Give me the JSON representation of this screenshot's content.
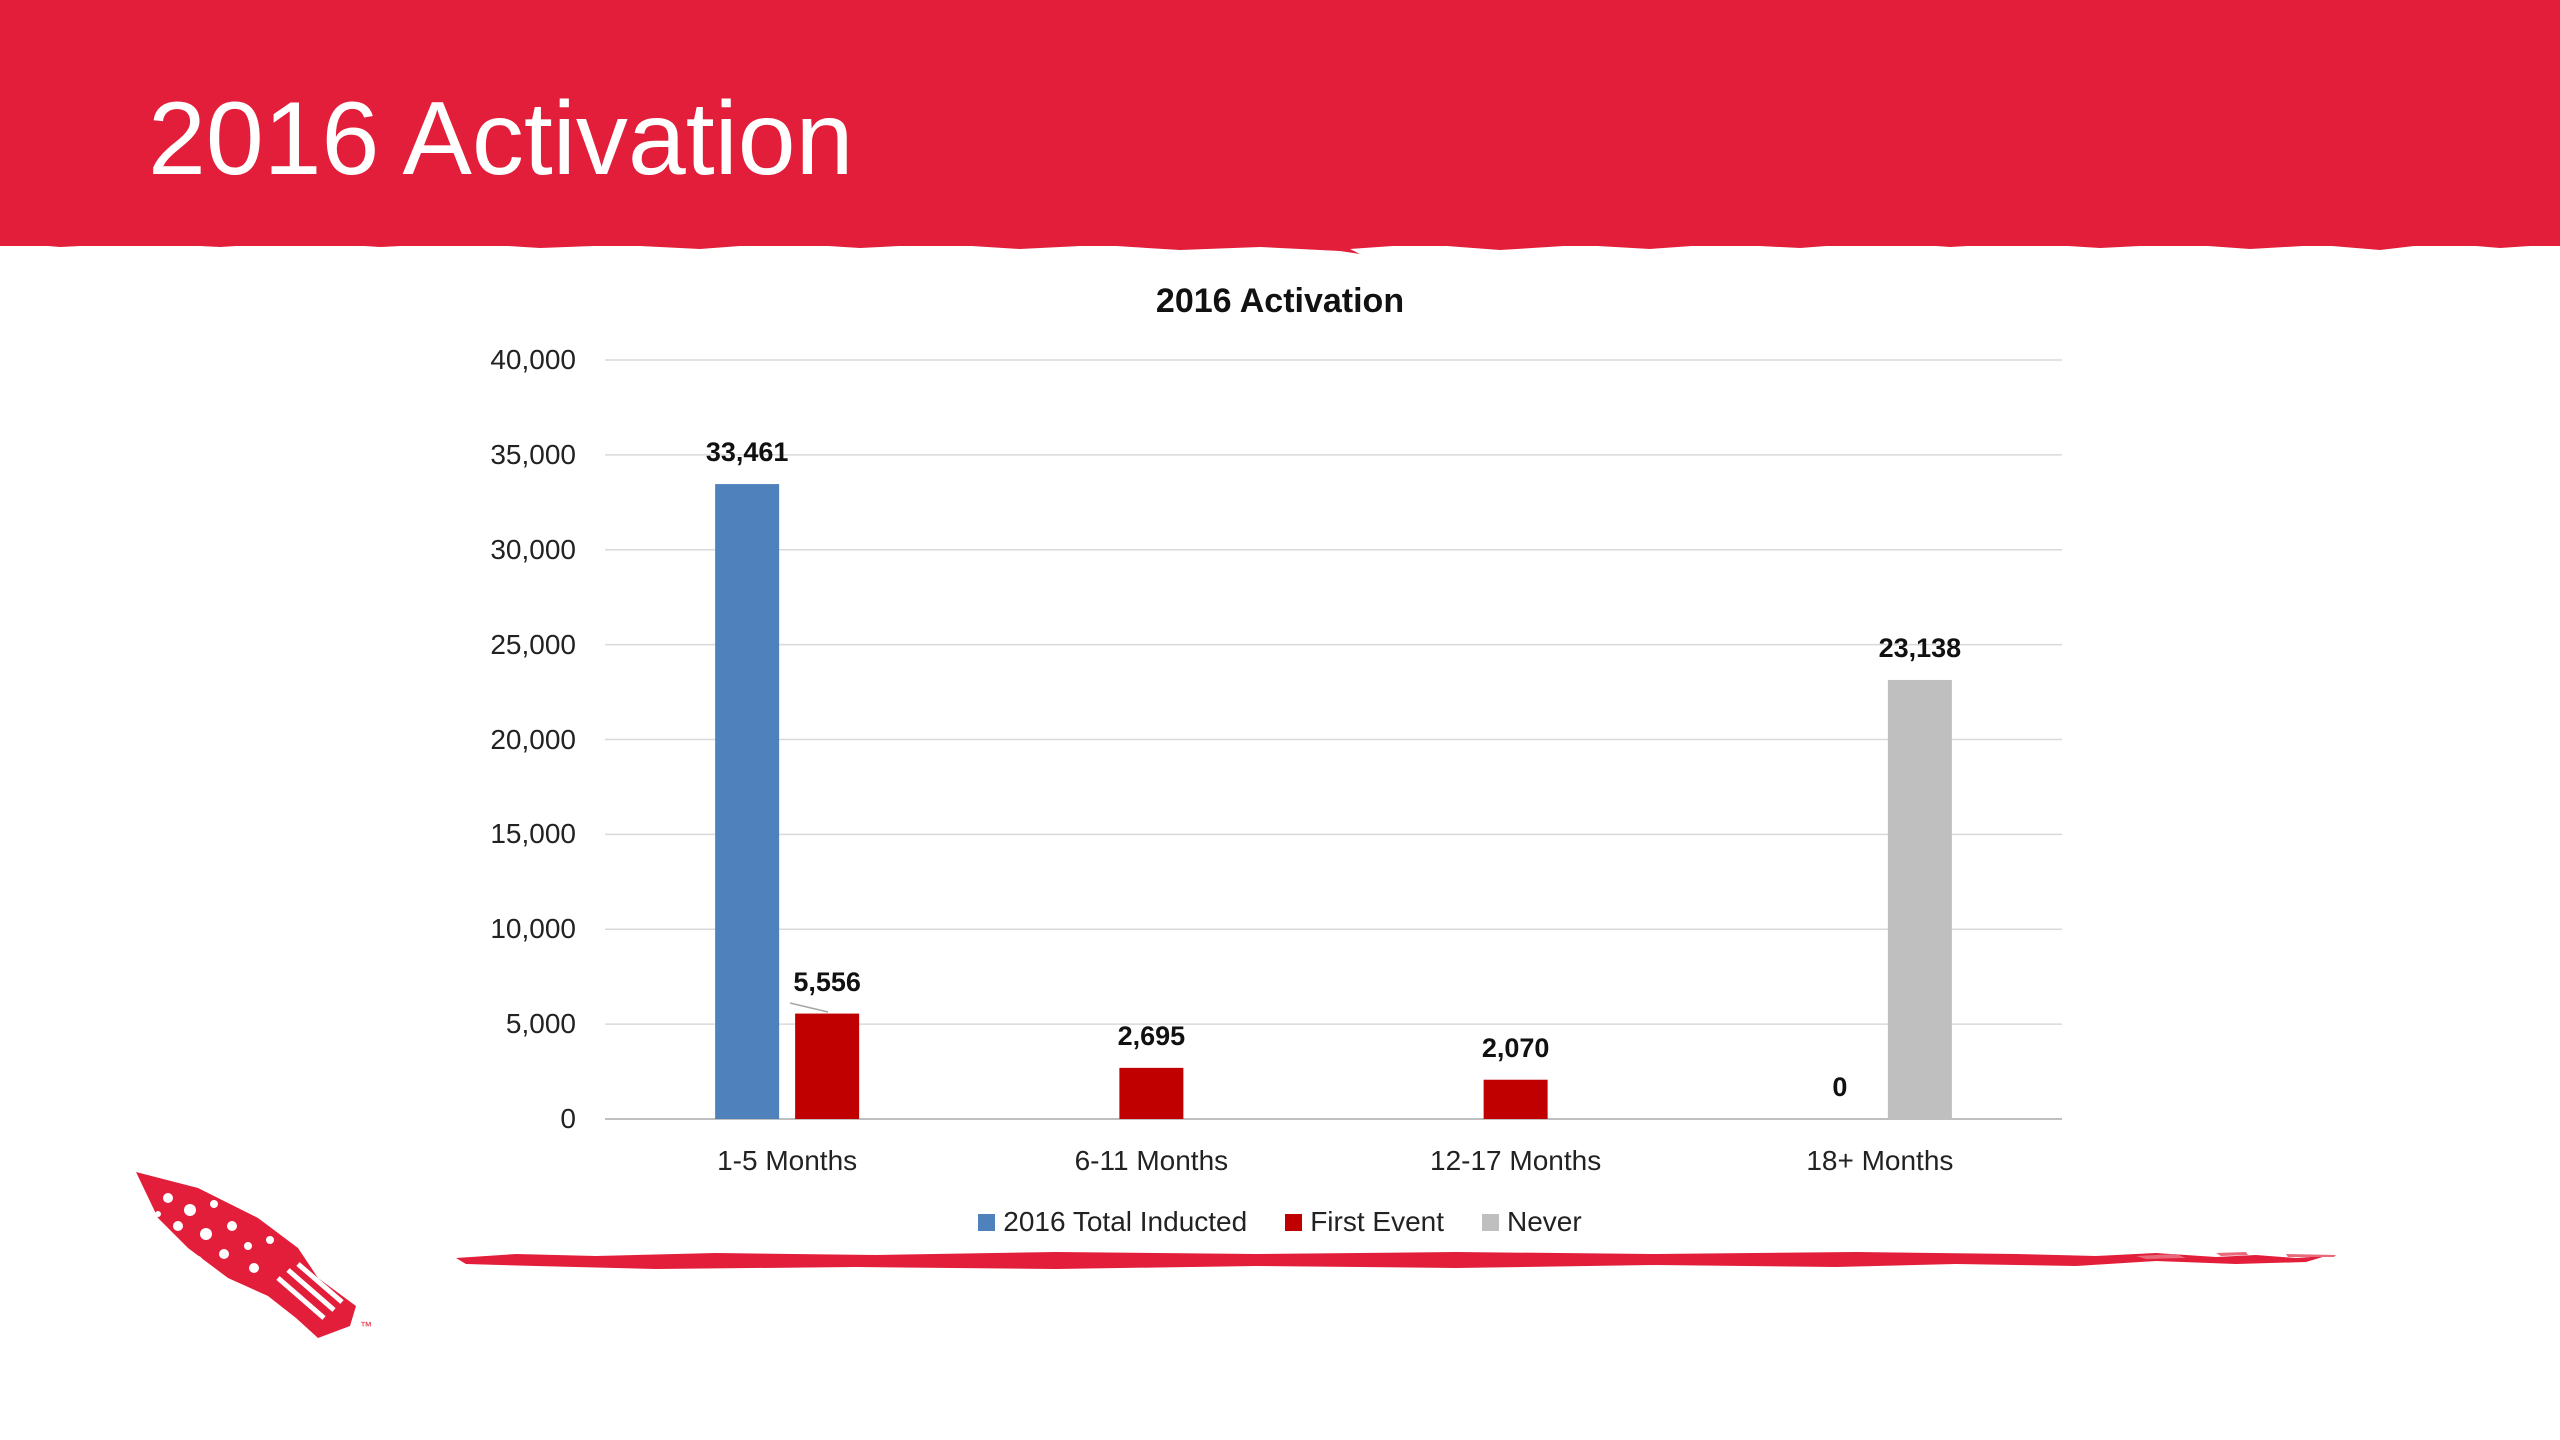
{
  "slide": {
    "title": "2016 Activation",
    "header_color": "#e21e3a",
    "logo_icon": "arrowhead-logo-icon",
    "logo_mark": "™"
  },
  "chart_data": {
    "type": "bar",
    "title": "2016 Activation",
    "xlabel": "",
    "ylabel": "",
    "categories": [
      "1-5 Months",
      "6-11 Months",
      "12-17 Months",
      "18+ Months"
    ],
    "ylim": [
      0,
      40000
    ],
    "yticks": [
      0,
      5000,
      10000,
      15000,
      20000,
      25000,
      30000,
      35000,
      40000
    ],
    "ytick_labels": [
      "0",
      "5,000",
      "10,000",
      "15,000",
      "20,000",
      "25,000",
      "30,000",
      "35,000",
      "40,000"
    ],
    "grid": true,
    "legend_position": "bottom",
    "series": [
      {
        "name": "2016 Total Inducted",
        "color": "#4f81bd",
        "values": [
          33461,
          null,
          null,
          null
        ],
        "labels": [
          "33,461",
          "",
          "",
          ""
        ]
      },
      {
        "name": "First Event",
        "color": "#c00000",
        "values": [
          5556,
          2695,
          2070,
          0
        ],
        "labels": [
          "5,556",
          "2,695",
          "2,070",
          "0"
        ]
      },
      {
        "name": "Never",
        "color": "#bfbfbf",
        "values": [
          null,
          null,
          null,
          23138
        ],
        "labels": [
          "",
          "",
          "",
          "23,138"
        ]
      }
    ]
  }
}
